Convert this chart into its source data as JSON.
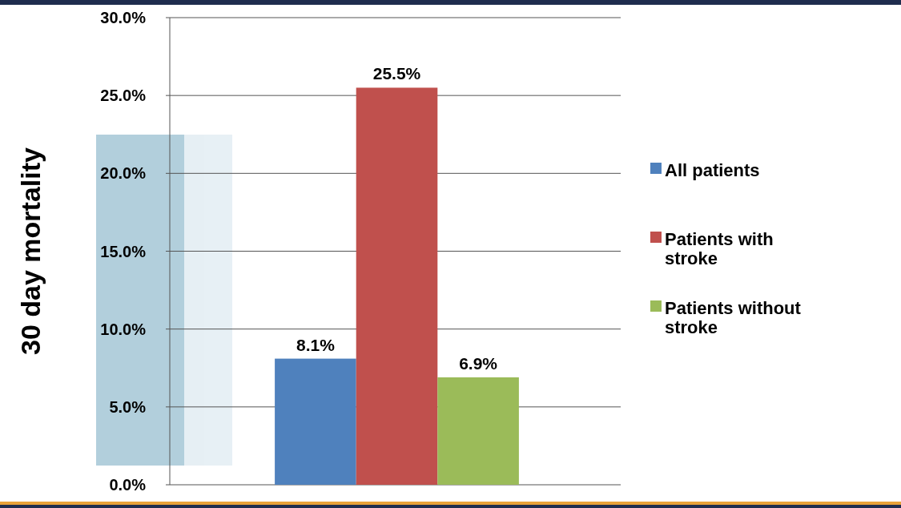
{
  "chart_data": {
    "type": "bar",
    "ylabel": "30 day mortality",
    "categories": [
      null
    ],
    "series": [
      {
        "name": "All patients",
        "color": "#4f81bd",
        "values": [
          8.1
        ],
        "value_labels": [
          "8.1%"
        ]
      },
      {
        "name": "Patients with stroke",
        "color": "#c0504d",
        "values": [
          25.5
        ],
        "value_labels": [
          "25.5%"
        ]
      },
      {
        "name": "Patients without stroke",
        "color": "#9bbb59",
        "values": [
          6.9
        ],
        "value_labels": [
          "6.9%"
        ]
      }
    ],
    "ylim": [
      0,
      30
    ],
    "yticks": [
      {
        "value": 0,
        "label": "0.0%"
      },
      {
        "value": 5,
        "label": "5.0%"
      },
      {
        "value": 10,
        "label": "10.0%"
      },
      {
        "value": 15,
        "label": "15.0%"
      },
      {
        "value": 20,
        "label": "20.0%"
      },
      {
        "value": 25,
        "label": "25.0%"
      },
      {
        "value": 30,
        "label": "30.0%"
      }
    ],
    "grid": "y",
    "legend": "right",
    "tick_labels": "y"
  }
}
